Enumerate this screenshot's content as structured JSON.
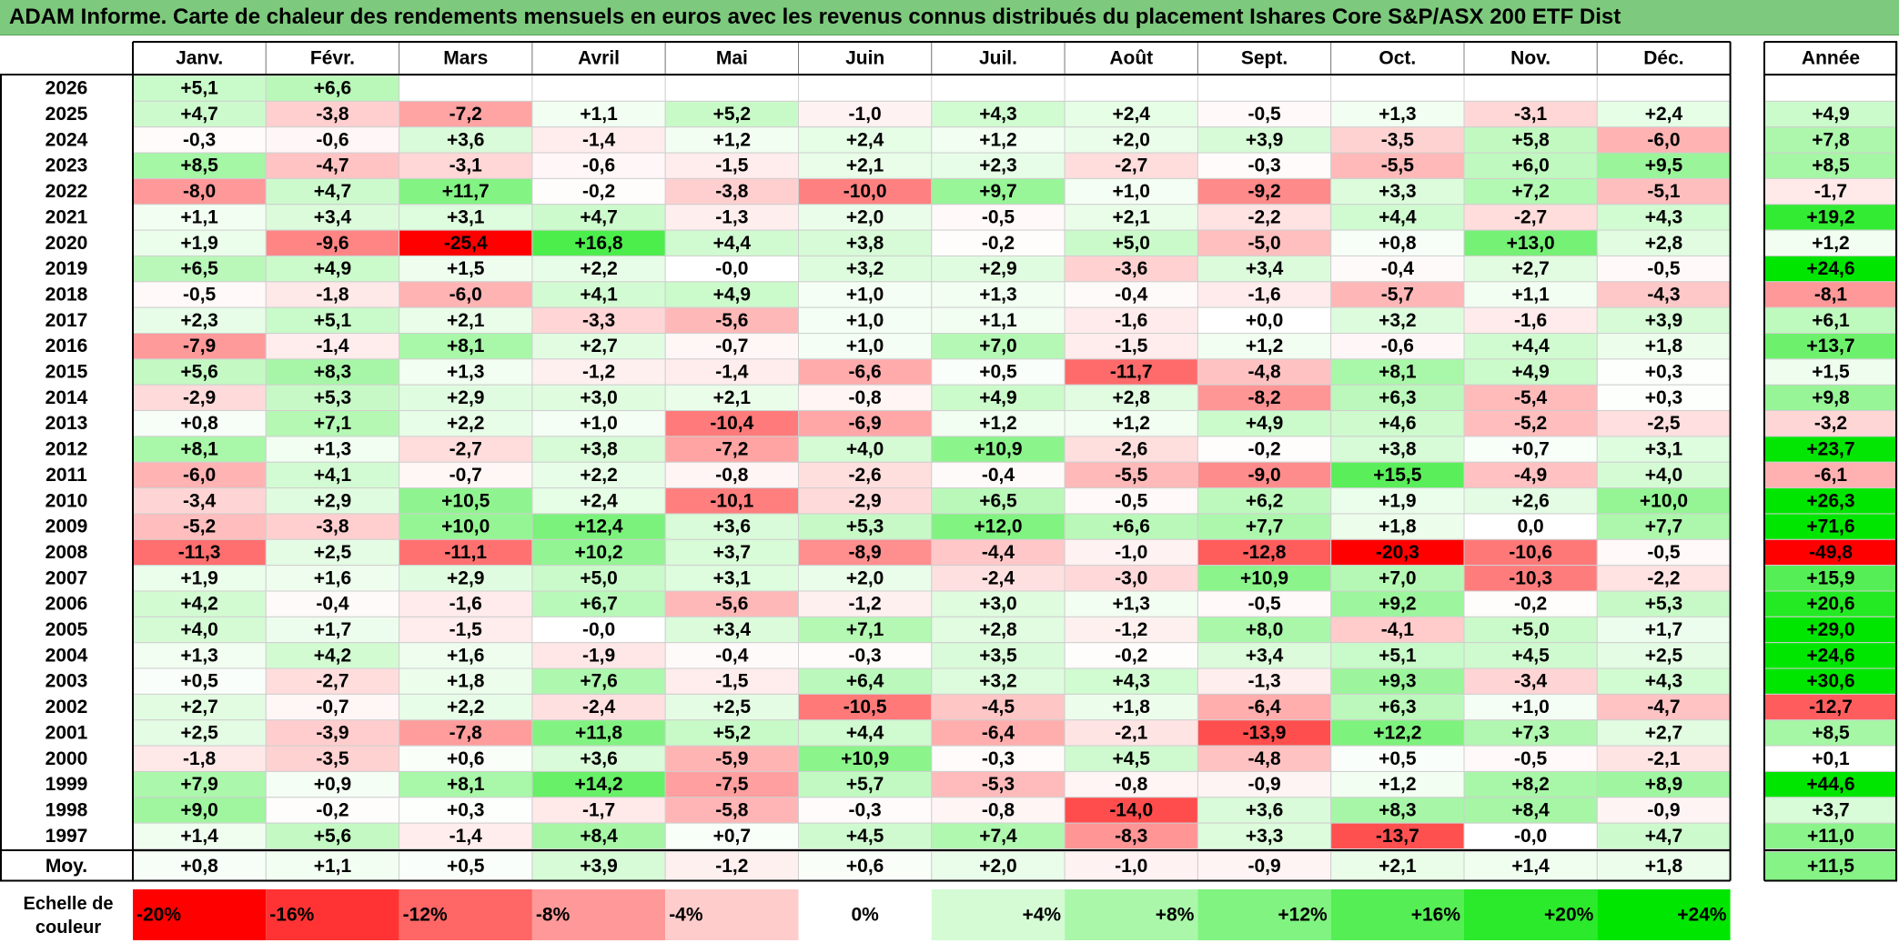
{
  "title": "ADAM Informe. Carte de chaleur des rendements mensuels en euros avec les revenus connus distribués du placement Ishares Core S&P/ASX 200 ETF Dist",
  "chart_data": {
    "type": "heatmap",
    "columns": [
      "Janv.",
      "Févr.",
      "Mars",
      "Avril",
      "Mai",
      "Juin",
      "Juil.",
      "Août",
      "Sept.",
      "Oct.",
      "Nov.",
      "Déc."
    ],
    "year_column_label": "Année",
    "rows": [
      {
        "year": "2026",
        "values": [
          "+5,1",
          "+6,6",
          "",
          "",
          "",
          "",
          "",
          "",
          "",
          "",
          "",
          ""
        ],
        "annual": ""
      },
      {
        "year": "2025",
        "values": [
          "+4,7",
          "-3,8",
          "-7,2",
          "+1,1",
          "+5,2",
          "-1,0",
          "+4,3",
          "+2,4",
          "-0,5",
          "+1,3",
          "-3,1",
          "+2,4"
        ],
        "annual": "+4,9"
      },
      {
        "year": "2024",
        "values": [
          "-0,3",
          "-0,6",
          "+3,6",
          "-1,4",
          "+1,2",
          "+2,4",
          "+1,2",
          "+2,0",
          "+3,9",
          "-3,5",
          "+5,8",
          "-6,0"
        ],
        "annual": "+7,8"
      },
      {
        "year": "2023",
        "values": [
          "+8,5",
          "-4,7",
          "-3,1",
          "-0,6",
          "-1,5",
          "+2,1",
          "+2,3",
          "-2,7",
          "-0,3",
          "-5,5",
          "+6,0",
          "+9,5"
        ],
        "annual": "+8,5"
      },
      {
        "year": "2022",
        "values": [
          "-8,0",
          "+4,7",
          "+11,7",
          "-0,2",
          "-3,8",
          "-10,0",
          "+9,7",
          "+1,0",
          "-9,2",
          "+3,3",
          "+7,2",
          "-5,1"
        ],
        "annual": "-1,7"
      },
      {
        "year": "2021",
        "values": [
          "+1,1",
          "+3,4",
          "+3,1",
          "+4,7",
          "-1,3",
          "+2,0",
          "-0,5",
          "+2,1",
          "-2,2",
          "+4,4",
          "-2,7",
          "+4,3"
        ],
        "annual": "+19,2"
      },
      {
        "year": "2020",
        "values": [
          "+1,9",
          "-9,6",
          "-25,4",
          "+16,8",
          "+4,4",
          "+3,8",
          "-0,2",
          "+5,0",
          "-5,0",
          "+0,8",
          "+13,0",
          "+2,8"
        ],
        "annual": "+1,2"
      },
      {
        "year": "2019",
        "values": [
          "+6,5",
          "+4,9",
          "+1,5",
          "+2,2",
          "-0,0",
          "+3,2",
          "+2,9",
          "-3,6",
          "+3,4",
          "-0,4",
          "+2,7",
          "-0,5"
        ],
        "annual": "+24,6"
      },
      {
        "year": "2018",
        "values": [
          "-0,5",
          "-1,8",
          "-6,0",
          "+4,1",
          "+4,9",
          "+1,0",
          "+1,3",
          "-0,4",
          "-1,6",
          "-5,7",
          "+1,1",
          "-4,3"
        ],
        "annual": "-8,1"
      },
      {
        "year": "2017",
        "values": [
          "+2,3",
          "+5,1",
          "+2,1",
          "-3,3",
          "-5,6",
          "+1,0",
          "+1,1",
          "-1,6",
          "+0,0",
          "+3,2",
          "-1,6",
          "+3,9"
        ],
        "annual": "+6,1"
      },
      {
        "year": "2016",
        "values": [
          "-7,9",
          "-1,4",
          "+8,1",
          "+2,7",
          "-0,7",
          "+1,0",
          "+7,0",
          "-1,5",
          "+1,2",
          "-0,6",
          "+4,4",
          "+1,8"
        ],
        "annual": "+13,7"
      },
      {
        "year": "2015",
        "values": [
          "+5,6",
          "+8,3",
          "+1,3",
          "-1,2",
          "-1,4",
          "-6,6",
          "+0,5",
          "-11,7",
          "-4,8",
          "+8,1",
          "+4,9",
          "+0,3"
        ],
        "annual": "+1,5"
      },
      {
        "year": "2014",
        "values": [
          "-2,9",
          "+5,3",
          "+2,9",
          "+3,0",
          "+2,1",
          "-0,8",
          "+4,9",
          "+2,8",
          "-8,2",
          "+6,3",
          "-5,4",
          "+0,3"
        ],
        "annual": "+9,8"
      },
      {
        "year": "2013",
        "values": [
          "+0,8",
          "+7,1",
          "+2,2",
          "+1,0",
          "-10,4",
          "-6,9",
          "+1,2",
          "+1,2",
          "+4,9",
          "+4,6",
          "-5,2",
          "-2,5"
        ],
        "annual": "-3,2"
      },
      {
        "year": "2012",
        "values": [
          "+8,1",
          "+1,3",
          "-2,7",
          "+3,8",
          "-7,2",
          "+4,0",
          "+10,9",
          "-2,6",
          "-0,2",
          "+3,8",
          "+0,7",
          "+3,1"
        ],
        "annual": "+23,7"
      },
      {
        "year": "2011",
        "values": [
          "-6,0",
          "+4,1",
          "-0,7",
          "+2,2",
          "-0,8",
          "-2,6",
          "-0,4",
          "-5,5",
          "-9,0",
          "+15,5",
          "-4,9",
          "+4,0"
        ],
        "annual": "-6,1"
      },
      {
        "year": "2010",
        "values": [
          "-3,4",
          "+2,9",
          "+10,5",
          "+2,4",
          "-10,1",
          "-2,9",
          "+6,5",
          "-0,5",
          "+6,2",
          "+1,9",
          "+2,6",
          "+10,0"
        ],
        "annual": "+26,3"
      },
      {
        "year": "2009",
        "values": [
          "-5,2",
          "-3,8",
          "+10,0",
          "+12,4",
          "+3,6",
          "+5,3",
          "+12,0",
          "+6,6",
          "+7,7",
          "+1,8",
          "0,0",
          "+7,7"
        ],
        "annual": "+71,6"
      },
      {
        "year": "2008",
        "values": [
          "-11,3",
          "+2,5",
          "-11,1",
          "+10,2",
          "+3,7",
          "-8,9",
          "-4,4",
          "-1,0",
          "-12,8",
          "-20,3",
          "-10,6",
          "-0,5"
        ],
        "annual": "-49,8"
      },
      {
        "year": "2007",
        "values": [
          "+1,9",
          "+1,6",
          "+2,9",
          "+5,0",
          "+3,1",
          "+2,0",
          "-2,4",
          "-3,0",
          "+10,9",
          "+7,0",
          "-10,3",
          "-2,2"
        ],
        "annual": "+15,9"
      },
      {
        "year": "2006",
        "values": [
          "+4,2",
          "-0,4",
          "-1,6",
          "+6,7",
          "-5,6",
          "-1,2",
          "+3,0",
          "+1,3",
          "-0,5",
          "+9,2",
          "-0,2",
          "+5,3"
        ],
        "annual": "+20,6"
      },
      {
        "year": "2005",
        "values": [
          "+4,0",
          "+1,7",
          "-1,5",
          "-0,0",
          "+3,4",
          "+7,1",
          "+2,8",
          "-1,2",
          "+8,0",
          "-4,1",
          "+5,0",
          "+1,7"
        ],
        "annual": "+29,0"
      },
      {
        "year": "2004",
        "values": [
          "+1,3",
          "+4,2",
          "+1,6",
          "-1,9",
          "-0,4",
          "-0,3",
          "+3,5",
          "-0,2",
          "+3,4",
          "+5,1",
          "+4,5",
          "+2,5"
        ],
        "annual": "+24,6"
      },
      {
        "year": "2003",
        "values": [
          "+0,5",
          "-2,7",
          "+1,8",
          "+7,6",
          "-1,5",
          "+6,4",
          "+3,2",
          "+4,3",
          "-1,3",
          "+9,3",
          "-3,4",
          "+4,3"
        ],
        "annual": "+30,6"
      },
      {
        "year": "2002",
        "values": [
          "+2,7",
          "-0,7",
          "+2,2",
          "-2,4",
          "+2,5",
          "-10,5",
          "-4,5",
          "+1,8",
          "-6,4",
          "+6,3",
          "+1,0",
          "-4,7"
        ],
        "annual": "-12,7"
      },
      {
        "year": "2001",
        "values": [
          "+2,5",
          "-3,9",
          "-7,8",
          "+11,8",
          "+5,2",
          "+4,4",
          "-6,4",
          "-2,1",
          "-13,9",
          "+12,2",
          "+7,3",
          "+2,7"
        ],
        "annual": "+8,5"
      },
      {
        "year": "2000",
        "values": [
          "-1,8",
          "-3,5",
          "+0,6",
          "+3,6",
          "-5,9",
          "+10,9",
          "-0,3",
          "+4,5",
          "-4,8",
          "+0,5",
          "-0,5",
          "-2,1"
        ],
        "annual": "+0,1"
      },
      {
        "year": "1999",
        "values": [
          "+7,9",
          "+0,9",
          "+8,1",
          "+14,2",
          "-7,5",
          "+5,7",
          "-5,3",
          "-0,8",
          "-0,9",
          "+1,2",
          "+8,2",
          "+8,9"
        ],
        "annual": "+44,6"
      },
      {
        "year": "1998",
        "values": [
          "+9,0",
          "-0,2",
          "+0,3",
          "-1,7",
          "-5,8",
          "-0,3",
          "-0,8",
          "-14,0",
          "+3,6",
          "+8,3",
          "+8,4",
          "-0,9"
        ],
        "annual": "+3,7"
      },
      {
        "year": "1997",
        "values": [
          "+1,4",
          "+5,6",
          "-1,4",
          "+8,4",
          "+0,7",
          "+4,5",
          "+7,4",
          "-8,3",
          "+3,3",
          "-13,7",
          "-0,0",
          "+4,7"
        ],
        "annual": "+11,0"
      }
    ],
    "average_row": {
      "label": "Moy.",
      "values": [
        "+0,8",
        "+1,1",
        "+0,5",
        "+3,9",
        "-1,2",
        "+0,6",
        "+2,0",
        "-1,0",
        "-0,9",
        "+2,1",
        "+1,4",
        "+1,8"
      ],
      "annual": "+11,5"
    },
    "scale": {
      "label": "Echelle de couleur",
      "stops": [
        "-20%",
        "-16%",
        "-12%",
        "-8%",
        "-4%",
        "0%",
        "+4%",
        "+8%",
        "+12%",
        "+16%",
        "+20%",
        "+24%"
      ],
      "stop_values": [
        -20,
        -16,
        -12,
        -8,
        -4,
        0,
        4,
        8,
        12,
        16,
        20,
        24
      ]
    },
    "colors": {
      "negative_max": "#ff0000",
      "neutral": "#ffffff",
      "positive_max": "#00e600",
      "title_bg": "#7dc97d"
    }
  }
}
